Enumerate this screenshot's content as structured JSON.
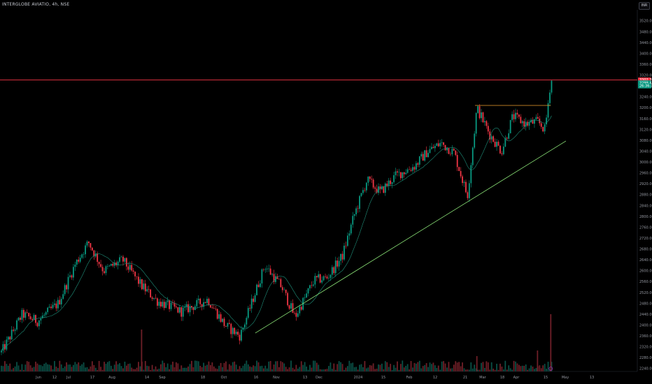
{
  "header": {
    "symbol": "INTERGLOBE AVIATIO, 4h, NSE",
    "currency": "INR"
  },
  "chart_data": {
    "type": "candlestick",
    "title": "INTERGLOBE AVIATIO, 4h, NSE",
    "y_ticks": [
      "3520.00",
      "3480.00",
      "3440.00",
      "3400.00",
      "3360.00",
      "3320.00",
      "3280.00",
      "3240.00",
      "3200.00",
      "3160.00",
      "3120.00",
      "3080.00",
      "3040.00",
      "3000.00",
      "2960.00",
      "2920.00",
      "2880.00",
      "2840.00",
      "2800.00",
      "2760.00",
      "2720.00",
      "2680.00",
      "2640.00",
      "2600.00",
      "2560.00",
      "2520.00",
      "2480.00",
      "2440.00",
      "2400.00",
      "2360.00",
      "2320.00",
      "2280.00",
      "2240.00"
    ],
    "ylim": [
      2213,
      3535
    ],
    "x_ticks": [
      "Jun",
      "12",
      "Jul",
      "17",
      "Aug",
      "14",
      "Sep",
      "18",
      "Oct",
      "16",
      "Nov",
      "13",
      "Dec",
      "2024",
      "15",
      "Feb",
      "12",
      "21",
      "Mar",
      "18",
      "Apr",
      "15",
      "May",
      "13"
    ],
    "price_labels": [
      {
        "value": "3302.70",
        "price": 3302.7,
        "color": "#f23645"
      },
      {
        "value": "3299.45",
        "price": 3292,
        "color": "#089981"
      },
      {
        "value": "26:36:34",
        "price": 3281,
        "color": "#089981"
      }
    ],
    "horizontal_lines": [
      {
        "price": 3302.7,
        "color": "#f23645"
      },
      {
        "price": 3209,
        "color": "#f0a02e"
      }
    ],
    "trendline": {
      "from": {
        "x": "Oct 13",
        "price": 2371
      },
      "to": {
        "x": "Mar 25",
        "price": 3078
      },
      "color": "#8ee87a"
    },
    "anchors": [
      {
        "x": "Jun 1",
        "price": 2300
      },
      {
        "x": "Jun 12",
        "price": 2440
      },
      {
        "x": "Jun 20",
        "price": 2415
      },
      {
        "x": "Jul 1",
        "price": 2480
      },
      {
        "x": "Jul 10",
        "price": 2625
      },
      {
        "x": "Jul 17",
        "price": 2705
      },
      {
        "x": "Jul 25",
        "price": 2600
      },
      {
        "x": "Aug 4",
        "price": 2640
      },
      {
        "x": "Aug 14",
        "price": 2545
      },
      {
        "x": "Aug 22",
        "price": 2490
      },
      {
        "x": "Sep 4",
        "price": 2450
      },
      {
        "x": "Sep 18",
        "price": 2495
      },
      {
        "x": "Sep 27",
        "price": 2400
      },
      {
        "x": "Oct 5",
        "price": 2360
      },
      {
        "x": "Oct 13",
        "price": 2520
      },
      {
        "x": "Oct 18",
        "price": 2620
      },
      {
        "x": "Oct 27",
        "price": 2540
      },
      {
        "x": "Nov 3",
        "price": 2430
      },
      {
        "x": "Nov 13",
        "price": 2565
      },
      {
        "x": "Nov 20",
        "price": 2575
      },
      {
        "x": "Nov 28",
        "price": 2655
      },
      {
        "x": "Dec 4",
        "price": 2800
      },
      {
        "x": "Dec 11",
        "price": 2935
      },
      {
        "x": "Dec 18",
        "price": 2890
      },
      {
        "x": "Dec 26",
        "price": 2950
      },
      {
        "x": "Jan 5",
        "price": 2985
      },
      {
        "x": "Jan 12",
        "price": 3040
      },
      {
        "x": "Jan 19",
        "price": 3070
      },
      {
        "x": "Jan 26",
        "price": 3035
      },
      {
        "x": "Feb 2",
        "price": 2875
      },
      {
        "x": "Feb 7",
        "price": 3200
      },
      {
        "x": "Feb 14",
        "price": 3100
      },
      {
        "x": "Feb 20",
        "price": 3040
      },
      {
        "x": "Feb 26",
        "price": 3170
      },
      {
        "x": "Mar 4",
        "price": 3140
      },
      {
        "x": "Mar 10",
        "price": 3150
      },
      {
        "x": "Mar 14",
        "price": 3120
      },
      {
        "x": "Mar 17",
        "price": 3302
      }
    ]
  }
}
